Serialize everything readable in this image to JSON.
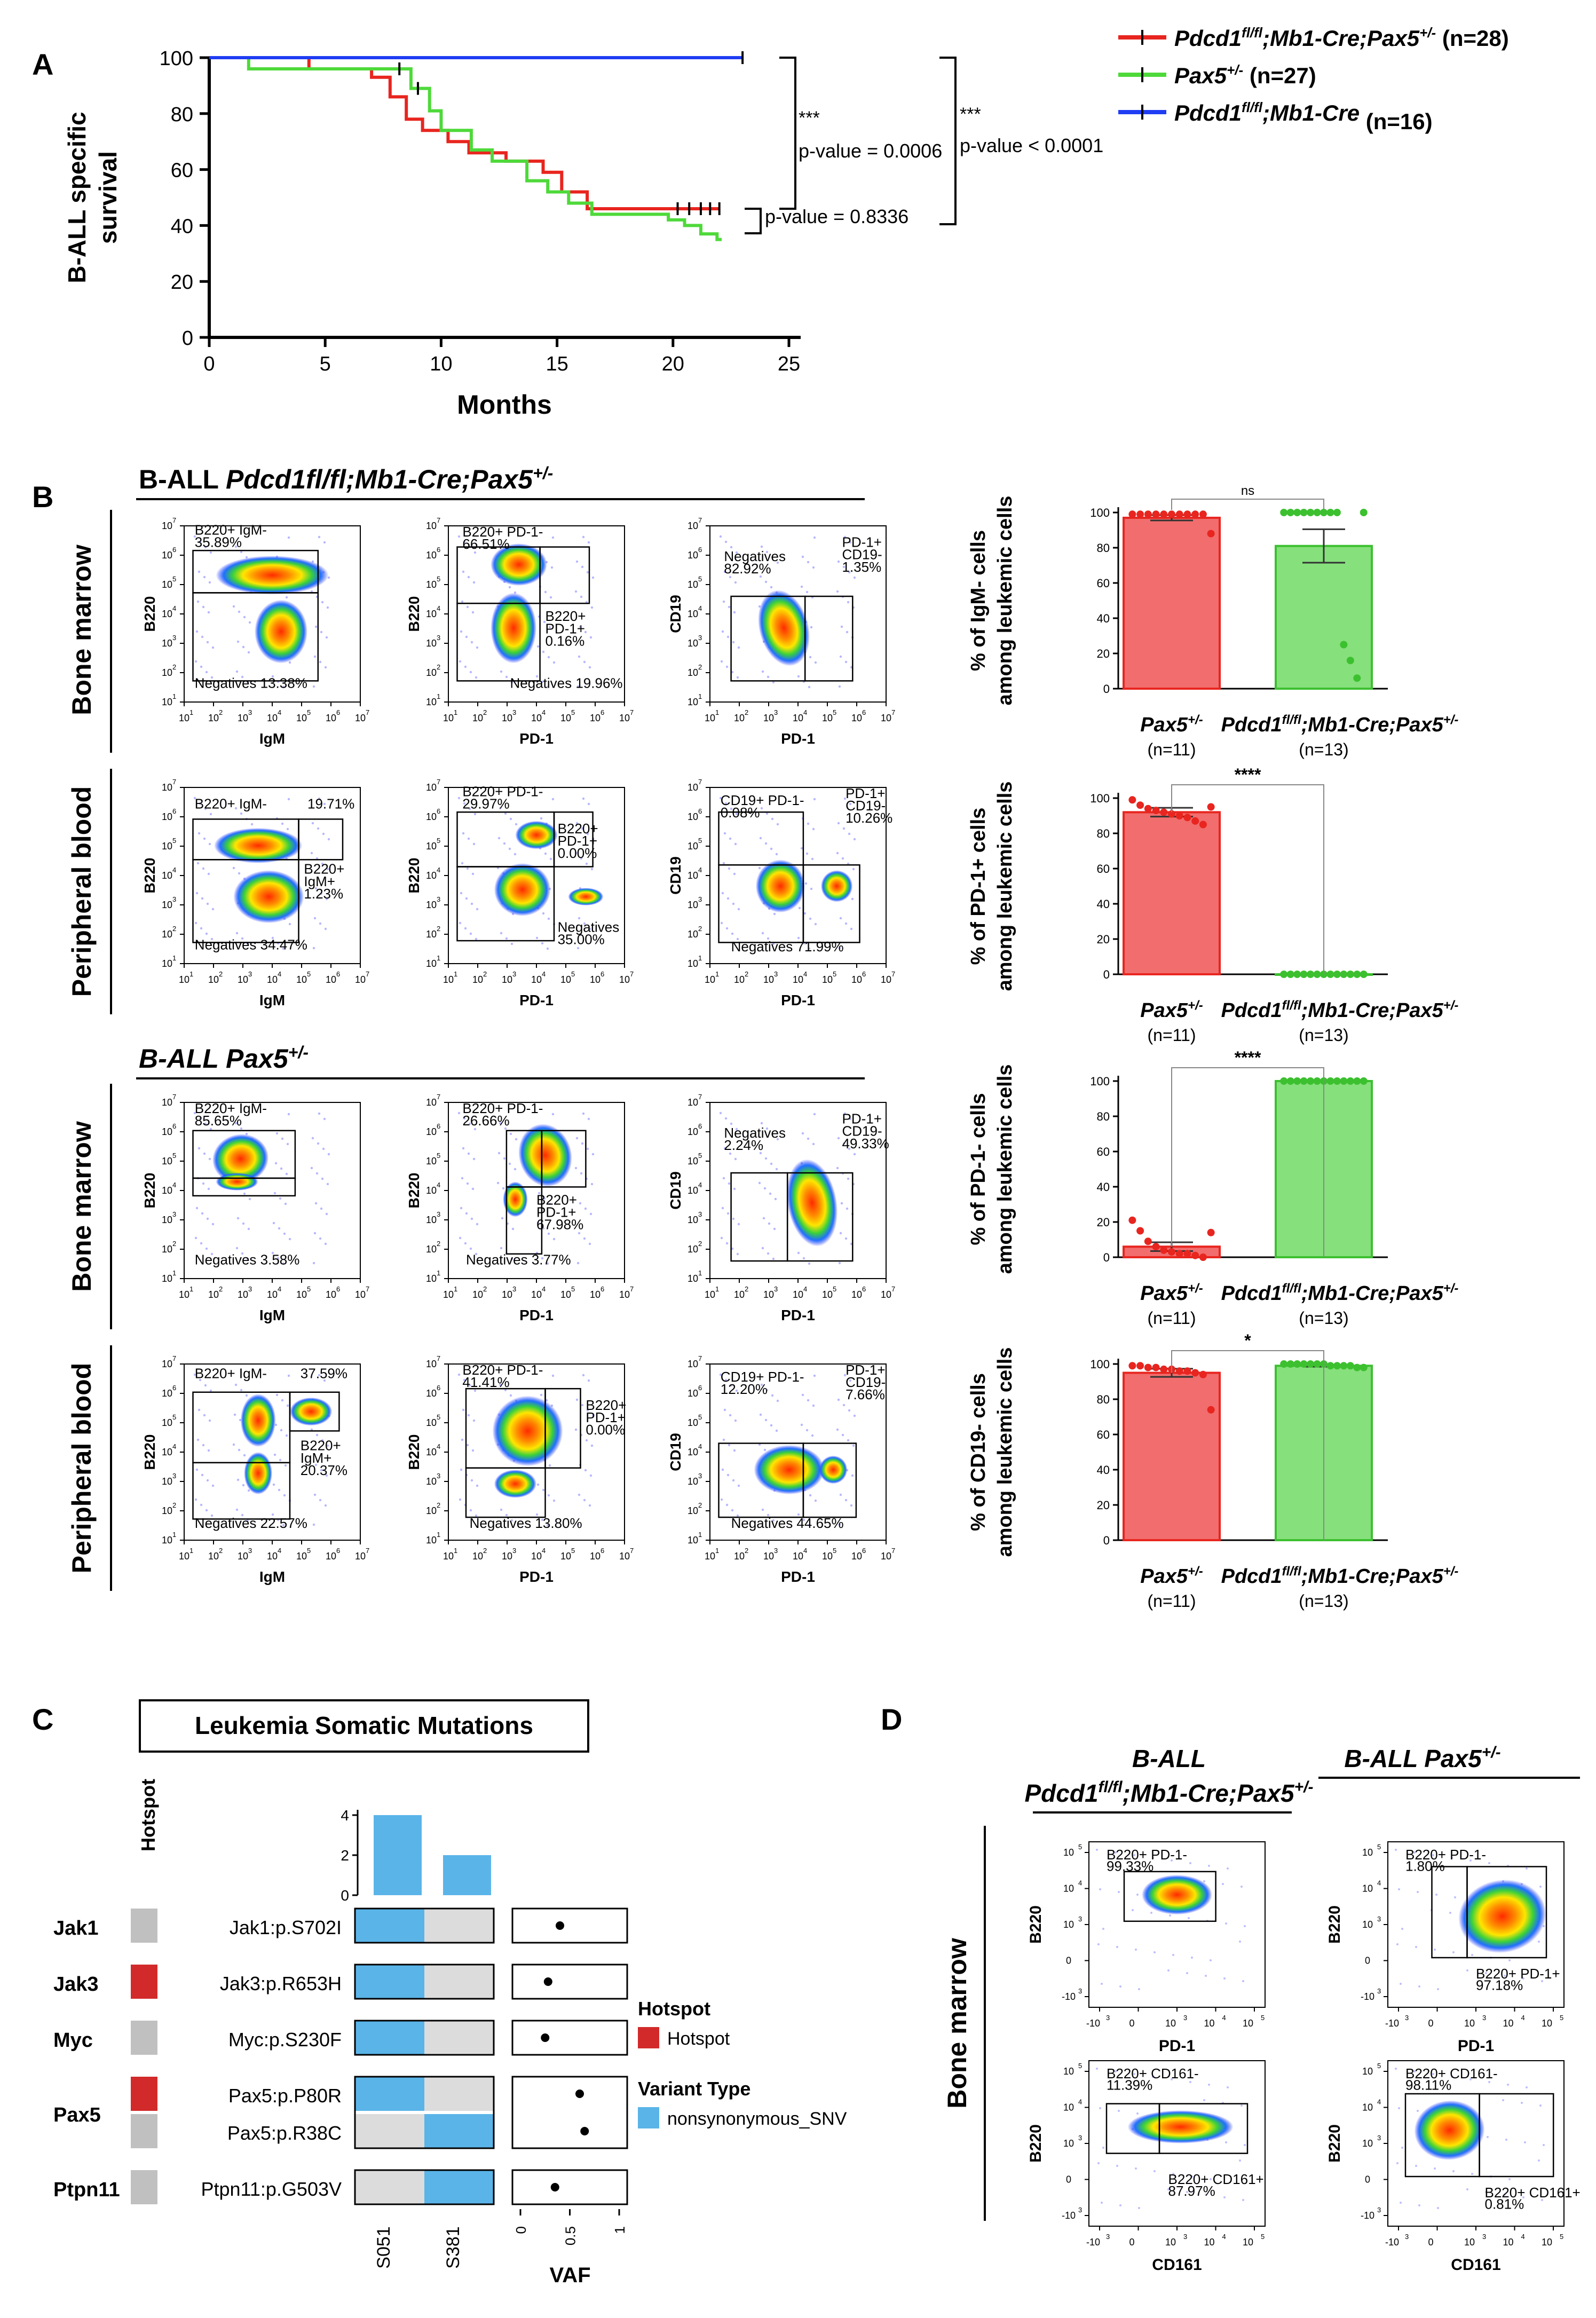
{
  "panels": {
    "A": {
      "letter": "A",
      "chart_data": {
        "type": "line",
        "title": "",
        "xlabel": "Months",
        "ylabel_lines": [
          "B-ALL specific",
          "survival"
        ],
        "xlim": [
          0,
          25
        ],
        "ylim": [
          0,
          100
        ],
        "xticks": [
          "0",
          "5",
          "10",
          "15",
          "20",
          "25"
        ],
        "yticks": [
          "0",
          "20",
          "40",
          "60",
          "80",
          "100"
        ],
        "series": [
          {
            "name": "Pdcd1fl/fl;Mb1-Cre;Pax5+/-",
            "legend_main": "Pdcd1",
            "legend_sup": "fl/fl",
            "legend_rest": ";Mb1-Cre;Pax5",
            "legend_sup2": "+/-",
            "legend_n": " (n=28)",
            "color": "#e8251f",
            "x": [
              0,
              4.3,
              4.3,
              7.0,
              7.0,
              7.8,
              7.8,
              8.5,
              8.5,
              9.2,
              9.2,
              10.3,
              10.3,
              11.2,
              11.2,
              12.8,
              12.8,
              14.4,
              14.4,
              15.2,
              15.2,
              16.3,
              16.3,
              22.0
            ],
            "y": [
              100,
              100,
              96,
              96,
              93,
              93,
              86,
              86,
              78,
              78,
              74,
              74,
              70,
              70,
              66,
              66,
              63,
              63,
              59,
              59,
              52,
              52,
              46,
              46
            ],
            "censor_x": [
              20.2,
              20.7,
              21.2,
              21.6,
              22.0
            ]
          },
          {
            "name": "Pax5+/-",
            "legend_main": "Pax5",
            "legend_sup": "+/-",
            "legend_rest": "",
            "legend_sup2": "",
            "legend_n": " (n=27)",
            "color": "#4ed93a",
            "x": [
              0,
              1.7,
              1.7,
              8.7,
              8.7,
              9.5,
              9.5,
              10.0,
              10.0,
              11.3,
              11.3,
              12.2,
              12.2,
              13.7,
              13.7,
              14.6,
              14.6,
              15.5,
              15.5,
              16.5,
              16.5,
              19.8,
              19.8,
              20.5,
              20.5,
              21.2,
              21.2,
              21.9,
              21.9,
              22.1
            ],
            "y": [
              100,
              100,
              96,
              96,
              89,
              89,
              81,
              81,
              74,
              74,
              67,
              67,
              63,
              63,
              56,
              56,
              52,
              52,
              48,
              48,
              44,
              44,
              42,
              42,
              40,
              40,
              37,
              37,
              35,
              35
            ],
            "censor_x": [
              8.2,
              9.0
            ]
          },
          {
            "name": "Pdcd1fl/fl;Mb1-Cre",
            "legend_main": "Pdcd1",
            "legend_sup": "fl/fl",
            "legend_rest": ";Mb1-Cre",
            "legend_sup2": "",
            "legend_n": " (n=16)",
            "color": "#1f3df2",
            "x": [
              0,
              23.0
            ],
            "y": [
              100,
              100
            ],
            "censor_x": [
              23.0
            ]
          }
        ],
        "comparisons": [
          {
            "stars": "***",
            "pvalue": "p-value = 0.0006"
          },
          {
            "stars": "***",
            "pvalue": "p-value < 0.0001"
          },
          {
            "stars": "",
            "pvalue": "p-value = 0.8336"
          }
        ]
      }
    },
    "B": {
      "letter": "B",
      "cohort1": {
        "prefix": "B-ALL ",
        "genotype": "Pdcd1fl/fl;Mb1-Cre;Pax5",
        "sup": "+/-"
      },
      "cohort2": {
        "prefix": "B-ALL ",
        "genotype": "Pax5",
        "sup": "+/-"
      },
      "row_labels": [
        "Bone marrow",
        "Peripheral blood",
        "Bone marrow",
        "Peripheral blood"
      ],
      "flow_plots": [
        {
          "xlabel": "IgM",
          "ylabel": "B220",
          "gates": [
            "B220+ IgM-",
            "35.89%",
            "Negatives 13.38%"
          ]
        },
        {
          "xlabel": "PD-1",
          "ylabel": "B220",
          "gates": [
            "B220+ PD-1-",
            "66.51%",
            "B220+",
            "PD-1+",
            "0.16%",
            "Negatives 19.96%"
          ]
        },
        {
          "xlabel": "PD-1",
          "ylabel": "CD19",
          "gates": [
            "Negatives",
            "82.92%",
            "PD-1+",
            "CD19-",
            "1.35%"
          ]
        },
        {
          "xlabel": "IgM",
          "ylabel": "B220",
          "gates": [
            "B220+ IgM-",
            "19.71%",
            "B220+",
            "IgM+",
            "1.23%",
            "Negatives 34.47%"
          ]
        },
        {
          "xlabel": "PD-1",
          "ylabel": "B220",
          "gates": [
            "B220+ PD-1-",
            "29.97%",
            "B220+",
            "PD-1+",
            "0.00%",
            "Negatives",
            "35.00%"
          ]
        },
        {
          "xlabel": "PD-1",
          "ylabel": "CD19",
          "gates": [
            "CD19+ PD-1-",
            "0.08%",
            "PD-1+",
            "CD19-",
            "10.26%",
            "Negatives 71.99%"
          ]
        },
        {
          "xlabel": "IgM",
          "ylabel": "B220",
          "gates": [
            "B220+ IgM-",
            "85.65%",
            "Negatives 3.58%"
          ]
        },
        {
          "xlabel": "PD-1",
          "ylabel": "B220",
          "gates": [
            "B220+ PD-1-",
            "26.66%",
            "B220+",
            "PD-1+",
            "67.98%",
            "Negatives 3.77%"
          ]
        },
        {
          "xlabel": "PD-1",
          "ylabel": "CD19",
          "gates": [
            "Negatives",
            "2.24%",
            "PD-1+",
            "CD19-",
            "49.33%"
          ]
        },
        {
          "xlabel": "IgM",
          "ylabel": "B220",
          "gates": [
            "B220+ IgM-",
            "37.59%",
            "B220+",
            "IgM+",
            "20.37%",
            "Negatives 22.57%"
          ]
        },
        {
          "xlabel": "PD-1",
          "ylabel": "B220",
          "gates": [
            "B220+ PD-1-",
            "41.41%",
            "B220+",
            "PD-1+",
            "0.00%",
            "Negatives 13.80%"
          ]
        },
        {
          "xlabel": "PD-1",
          "ylabel": "CD19",
          "gates": [
            "CD19+ PD-1-",
            "12.20%",
            "PD-1+",
            "CD19-",
            "7.66%",
            "Negatives 44.65%"
          ]
        }
      ],
      "axis_ticks": [
        "10",
        "1",
        "10",
        "2",
        "10",
        "3",
        "10",
        "4",
        "10",
        "5",
        "10",
        "6",
        "10",
        "7"
      ],
      "bar_group_labels": {
        "g1_main": "Pax5",
        "g1_sup": "+/-",
        "g1_n": "(n=11)",
        "g2_main": "Pdcd1",
        "g2_sup": "fl/fl",
        "g2_mid": ";Mb1-Cre;Pax5",
        "g2_sup2": "+/-",
        "g2_n": "(n=13)"
      },
      "chart_data": [
        {
          "type": "bar",
          "ylabel_lines": [
            "% of IgM- cells",
            "among leukemic cells"
          ],
          "ylim": [
            0,
            100
          ],
          "yticks": [
            "0",
            "20",
            "40",
            "60",
            "80",
            "100"
          ],
          "categories": [
            "Pax5+/-",
            "Pdcd1fl/fl;Mb1-Cre;Pax5+/-"
          ],
          "values": [
            97,
            81
          ],
          "errors": [
            1.5,
            9.5
          ],
          "significance": "ns",
          "points": [
            [
              99,
              99,
              99,
              99,
              99,
              99,
              99,
              99,
              99,
              99,
              88
            ],
            [
              100,
              100,
              100,
              100,
              100,
              100,
              100,
              100,
              100,
              25,
              16,
              6,
              100
            ]
          ]
        },
        {
          "type": "bar",
          "ylabel_lines": [
            "% of PD-1+ cells",
            "among leukemic cells"
          ],
          "ylim": [
            0,
            100
          ],
          "yticks": [
            "0",
            "20",
            "40",
            "60",
            "80",
            "100"
          ],
          "categories": [
            "Pax5+/-",
            "Pdcd1fl/fl;Mb1-Cre;Pax5+/-"
          ],
          "values": [
            92,
            0
          ],
          "errors": [
            2.5,
            0
          ],
          "significance": "****",
          "points": [
            [
              99,
              96,
              94,
              93,
              92,
              91,
              90,
              89,
              87,
              85,
              95
            ],
            [
              0,
              0,
              0,
              0,
              0,
              0,
              0,
              0,
              0,
              0,
              0,
              0,
              0
            ]
          ]
        },
        {
          "type": "bar",
          "ylabel_lines": [
            "% of PD-1- cells",
            "among leukemic cells"
          ],
          "ylim": [
            0,
            100
          ],
          "yticks": [
            "0",
            "20",
            "40",
            "60",
            "80",
            "100"
          ],
          "categories": [
            "Pax5+/-",
            "Pdcd1fl/fl;Mb1-Cre;Pax5+/-"
          ],
          "values": [
            6,
            100
          ],
          "errors": [
            2.5,
            0
          ],
          "significance": "****",
          "points": [
            [
              21,
              15,
              9,
              6,
              4,
              3,
              2,
              2,
              1,
              0,
              14
            ],
            [
              100,
              100,
              100,
              100,
              100,
              100,
              100,
              100,
              100,
              100,
              100,
              100,
              100
            ]
          ]
        },
        {
          "type": "bar",
          "ylabel_lines": [
            "% of CD19- cells",
            "among leukemic cells"
          ],
          "ylim": [
            0,
            100
          ],
          "yticks": [
            "0",
            "20",
            "40",
            "60",
            "80",
            "100"
          ],
          "categories": [
            "Pax5+/-",
            "Pdcd1fl/fl;Mb1-Cre;Pax5+/-"
          ],
          "values": [
            95,
            99
          ],
          "errors": [
            2.3,
            0.5
          ],
          "significance": "*",
          "points": [
            [
              99,
              99,
              98,
              98,
              97,
              97,
              96,
              96,
              95,
              94,
              74
            ],
            [
              100,
              100,
              100,
              100,
              100,
              100,
              100,
              99,
              99,
              99,
              99,
              98,
              98
            ]
          ]
        }
      ]
    },
    "C": {
      "letter": "C",
      "title": "Leukemia Somatic Mutations",
      "hotspot_header": "Hotspot",
      "samples": [
        "S051",
        "S381"
      ],
      "top_counts": [
        4,
        2
      ],
      "top_ticks": [
        "0",
        "2",
        "4"
      ],
      "genes": [
        {
          "gene": "Jak1",
          "mutations": [
            {
              "label": "Jak1:p.S702I",
              "hotspot": false,
              "S051": true,
              "S381": false,
              "vaf": 0.4
            }
          ]
        },
        {
          "gene": "Jak3",
          "mutations": [
            {
              "label": "Jak3:p.R653H",
              "hotspot": true,
              "S051": true,
              "S381": false,
              "vaf": 0.28
            }
          ]
        },
        {
          "gene": "Myc",
          "mutations": [
            {
              "label": "Myc:p.S230F",
              "hotspot": false,
              "S051": true,
              "S381": false,
              "vaf": 0.25
            }
          ]
        },
        {
          "gene": "Pax5",
          "mutations": [
            {
              "label": "Pax5:p.P80R",
              "hotspot": true,
              "S051": true,
              "S381": false,
              "vaf": 0.6
            },
            {
              "label": "Pax5:p.R38C",
              "hotspot": false,
              "S051": false,
              "S381": true,
              "vaf": 0.65
            }
          ]
        },
        {
          "gene": "Ptpn11",
          "mutations": [
            {
              "label": "Ptpn11:p.G503V",
              "hotspot": false,
              "S051": false,
              "S381": true,
              "vaf": 0.35
            }
          ]
        }
      ],
      "vaf_label": "VAF",
      "vaf_ticks": [
        "0",
        "0.5",
        "1"
      ],
      "legend": {
        "hotspot_title": "Hotspot",
        "hotspot_item": "Hotspot",
        "variant_title": "Variant Type",
        "variant_item": "nonsynonymous_SNV"
      },
      "colors": {
        "hotspot": "#d22a2a",
        "not_hotspot": "#c0c0c0",
        "snv": "#5ab4e8",
        "empty": "#dcdcdc"
      }
    },
    "D": {
      "letter": "D",
      "col1_line1": "B-ALL",
      "col1_line2a": "Pdcd1",
      "col1_line2sup1": "fl/fl",
      "col1_line2b": ";Mb1-Cre;Pax5",
      "col1_line2sup2": "+/-",
      "col2_title": "B-ALL Pax5",
      "col2_sup": "+/-",
      "row_label": "Bone marrow",
      "plots": [
        {
          "xlabel": "PD-1",
          "ylabel": "B220",
          "gates": [
            "B220+ PD-1-",
            "99.33%"
          ]
        },
        {
          "xlabel": "PD-1",
          "ylabel": "B220",
          "gates": [
            "B220+ PD-1-",
            "1.80%",
            "B220+ PD-1+",
            "97.18%"
          ]
        },
        {
          "xlabel": "CD161",
          "ylabel": "B220",
          "gates": [
            "B220+ CD161-",
            "11.39%",
            "B220+ CD161+",
            "87.97%"
          ]
        },
        {
          "xlabel": "CD161",
          "ylabel": "B220",
          "gates": [
            "B220+ CD161-",
            "98.11%",
            "B220+ CD161+",
            "0.81%"
          ]
        }
      ],
      "axis_ticks": [
        "-10",
        "3",
        "0",
        "10",
        "3",
        "10",
        "4",
        "10",
        "5"
      ]
    }
  }
}
